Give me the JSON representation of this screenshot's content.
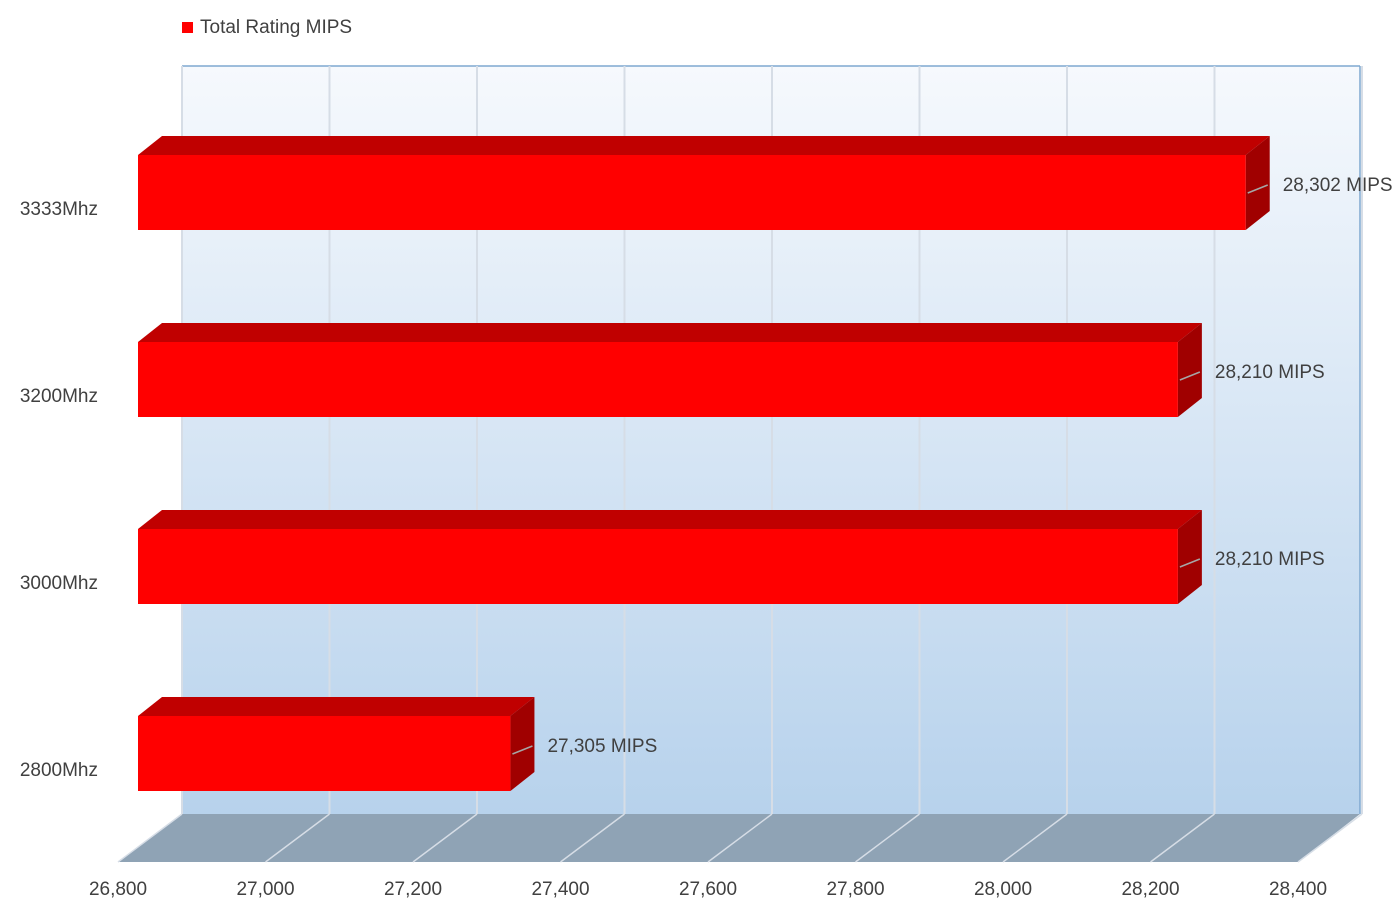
{
  "chart_data": {
    "type": "bar3d",
    "orientation": "horizontal",
    "categories": [
      "3333Mhz",
      "3200Mhz",
      "3000Mhz",
      "2800Mhz"
    ],
    "series": [
      {
        "name": "Total Rating MIPS",
        "color": "#ff0000",
        "values": [
          28302,
          28210,
          28210,
          27305
        ],
        "value_labels": [
          "28,302 MIPS",
          "28,210 MIPS",
          "28,210 MIPS",
          "27,305 MIPS"
        ],
        "value_label_colors": [
          "#e00000",
          "#000000",
          "#000000",
          "#404040"
        ]
      }
    ],
    "xlim": [
      26800,
      28400
    ],
    "xticks": [
      {
        "value": 26800,
        "label": "26,800"
      },
      {
        "value": 27000,
        "label": "27,000"
      },
      {
        "value": 27200,
        "label": "27,200"
      },
      {
        "value": 27400,
        "label": "27,400"
      },
      {
        "value": 27600,
        "label": "27,600"
      },
      {
        "value": 27800,
        "label": "27,800"
      },
      {
        "value": 28000,
        "label": "28,000"
      },
      {
        "value": 28200,
        "label": "28,200"
      },
      {
        "value": 28400,
        "label": "28,400"
      }
    ],
    "grid": true,
    "legend": "top-left"
  }
}
